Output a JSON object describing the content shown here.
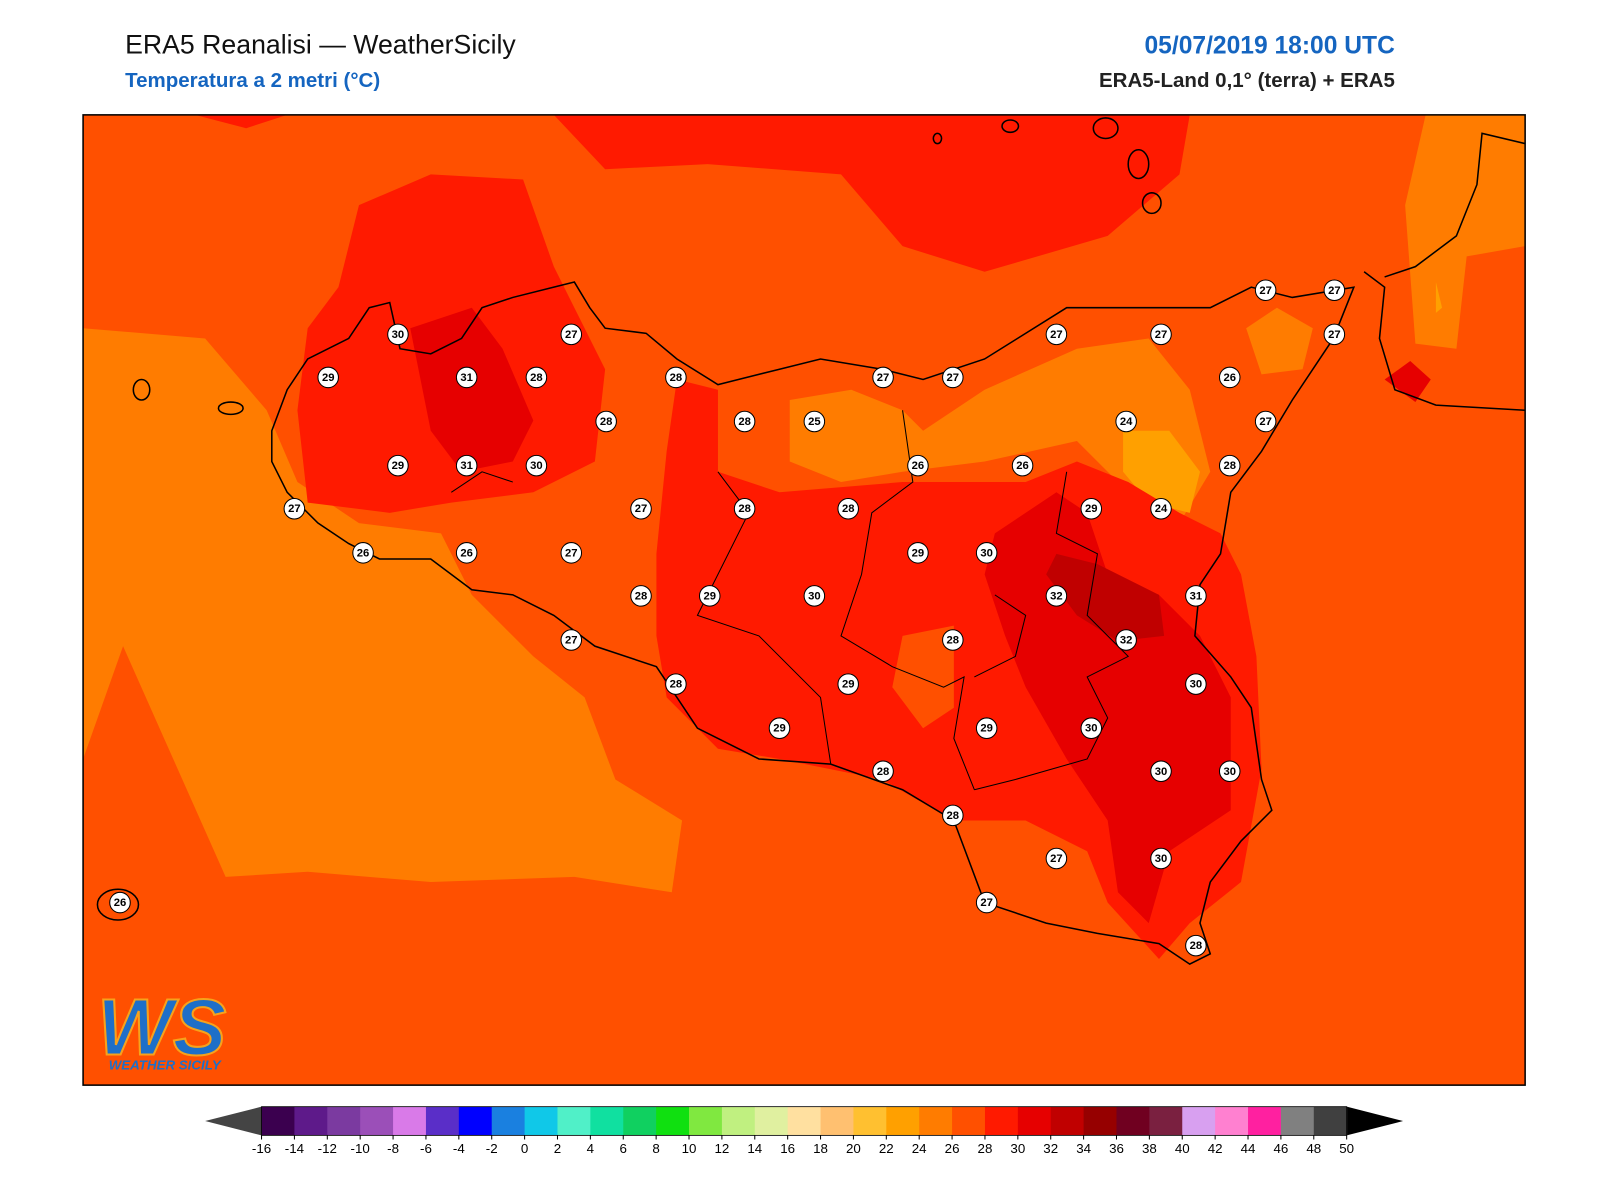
{
  "header": {
    "title": "ERA5 Reanalisi — WeatherSicily",
    "subtitle": "Temperatura a 2 metri (°C)",
    "datetime": "05/07/2019 18:00 UTC",
    "source": "ERA5-Land 0,1° (terra) + ERA5"
  },
  "map": {
    "stations": [
      27,
      27,
      30,
      27,
      27,
      27,
      27,
      29,
      31,
      28,
      28,
      27,
      27,
      26,
      28,
      28,
      25,
      24,
      27,
      29,
      31,
      30,
      26,
      26,
      28,
      27,
      27,
      28,
      28,
      29,
      24,
      26,
      26,
      27,
      29,
      30,
      28,
      29,
      30,
      32,
      31,
      27,
      28,
      32,
      28,
      29,
      30,
      29,
      29,
      30,
      28,
      30,
      30,
      28,
      27,
      30,
      26,
      27,
      28
    ]
  },
  "colorbar": {
    "ticks": [
      -16,
      -14,
      -12,
      -10,
      -8,
      -6,
      -4,
      -2,
      0,
      2,
      4,
      6,
      8,
      10,
      12,
      14,
      16,
      18,
      20,
      22,
      24,
      26,
      28,
      30,
      32,
      34,
      36,
      38,
      40,
      42,
      44,
      46,
      48,
      50
    ],
    "colors": [
      "#3b004f",
      "#5e1a8a",
      "#7b3aa0",
      "#9b4fb8",
      "#d97ae8",
      "#5a2ec8",
      "#0000ff",
      "#1a80e0",
      "#10c8e8",
      "#50f0c8",
      "#10e0a0",
      "#10d060",
      "#10e010",
      "#80e840",
      "#c0f080",
      "#e0f0a0",
      "#ffe0a0",
      "#ffc070",
      "#ffc030",
      "#ffa000",
      "#ff7c00",
      "#ff5000",
      "#ff1a00",
      "#e60000",
      "#c00000",
      "#960000",
      "#700020",
      "#7a2040",
      "#d8a0f0",
      "#ff80d0",
      "#ff20a0",
      "#808080",
      "#404040"
    ],
    "under_color": "#444444",
    "over_color": "#000000"
  },
  "logo": {
    "mark": "WS",
    "text": "WEATHER SICILY"
  }
}
